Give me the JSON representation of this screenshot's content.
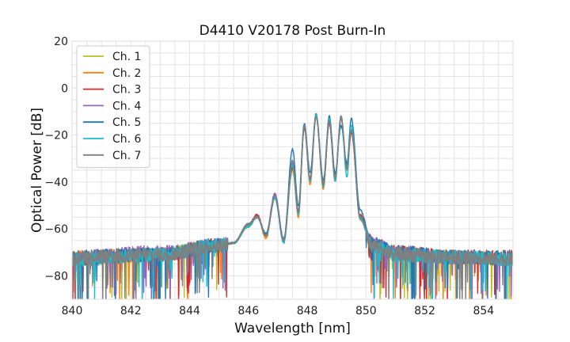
{
  "chart_data": {
    "type": "line",
    "title": "D4410 V20178 Post Burn-In",
    "xlabel": "Wavelength [nm]",
    "ylabel": "Optical Power [dB]",
    "xlim": [
      840,
      855
    ],
    "ylim": [
      -90,
      20
    ],
    "xticks": [
      840,
      842,
      844,
      846,
      848,
      850,
      852,
      854
    ],
    "yticks": [
      -80,
      -60,
      -40,
      -20,
      0,
      20
    ],
    "grid": true,
    "legend_position": "top-left",
    "series": [
      {
        "name": "Ch. 1",
        "color": "#bcbd22",
        "points": [
          [
            840,
            -73
          ],
          [
            843,
            -71
          ],
          [
            845,
            -67
          ],
          [
            845.5,
            -66
          ],
          [
            846,
            -58
          ],
          [
            846.3,
            -55
          ],
          [
            846.6,
            -63
          ],
          [
            846.9,
            -47
          ],
          [
            847.2,
            -65
          ],
          [
            847.5,
            -35
          ],
          [
            847.7,
            -54
          ],
          [
            847.9,
            -17
          ],
          [
            848.1,
            -40
          ],
          [
            848.3,
            -11
          ],
          [
            848.55,
            -42
          ],
          [
            848.75,
            -14
          ],
          [
            848.95,
            -38
          ],
          [
            849.15,
            -12
          ],
          [
            849.35,
            -33
          ],
          [
            849.5,
            -19
          ],
          [
            849.8,
            -55
          ],
          [
            850.2,
            -67
          ],
          [
            851,
            -70
          ],
          [
            853,
            -72
          ],
          [
            855,
            -73
          ]
        ]
      },
      {
        "name": "Ch. 2",
        "color": "#ff7f0e",
        "points": [
          [
            840,
            -72
          ],
          [
            843,
            -71
          ],
          [
            845,
            -67
          ],
          [
            845.5,
            -66
          ],
          [
            846,
            -59
          ],
          [
            846.3,
            -55
          ],
          [
            846.6,
            -64
          ],
          [
            846.9,
            -46
          ],
          [
            847.2,
            -66
          ],
          [
            847.5,
            -33
          ],
          [
            847.7,
            -55
          ],
          [
            847.9,
            -16
          ],
          [
            848.1,
            -41
          ],
          [
            848.3,
            -12
          ],
          [
            848.55,
            -43
          ],
          [
            848.75,
            -13
          ],
          [
            848.95,
            -37
          ],
          [
            849.15,
            -13
          ],
          [
            849.35,
            -35
          ],
          [
            849.5,
            -18
          ],
          [
            849.8,
            -56
          ],
          [
            850.2,
            -67
          ],
          [
            851,
            -71
          ],
          [
            853,
            -72
          ],
          [
            855,
            -73
          ]
        ]
      },
      {
        "name": "Ch. 3",
        "color": "#d62728",
        "points": [
          [
            840,
            -73
          ],
          [
            843,
            -71
          ],
          [
            845,
            -67
          ],
          [
            845.5,
            -66
          ],
          [
            846,
            -58
          ],
          [
            846.3,
            -54
          ],
          [
            846.6,
            -63
          ],
          [
            846.9,
            -47
          ],
          [
            847.2,
            -65
          ],
          [
            847.5,
            -34
          ],
          [
            847.7,
            -53
          ],
          [
            847.9,
            -17
          ],
          [
            848.1,
            -39
          ],
          [
            848.3,
            -12
          ],
          [
            848.55,
            -41
          ],
          [
            848.75,
            -15
          ],
          [
            848.95,
            -39
          ],
          [
            849.15,
            -12
          ],
          [
            849.35,
            -34
          ],
          [
            849.5,
            -19
          ],
          [
            849.8,
            -54
          ],
          [
            850.2,
            -66
          ],
          [
            851,
            -70
          ],
          [
            853,
            -72
          ],
          [
            855,
            -72
          ]
        ]
      },
      {
        "name": "Ch. 4",
        "color": "#9467bd",
        "points": [
          [
            840,
            -72
          ],
          [
            843,
            -70
          ],
          [
            845,
            -67
          ],
          [
            845.5,
            -66
          ],
          [
            846,
            -58
          ],
          [
            846.3,
            -55
          ],
          [
            846.6,
            -62
          ],
          [
            846.9,
            -45
          ],
          [
            847.2,
            -64
          ],
          [
            847.5,
            -32
          ],
          [
            847.7,
            -52
          ],
          [
            847.9,
            -16
          ],
          [
            848.1,
            -38
          ],
          [
            848.3,
            -12
          ],
          [
            848.55,
            -40
          ],
          [
            848.75,
            -14
          ],
          [
            848.95,
            -38
          ],
          [
            849.15,
            -13
          ],
          [
            849.35,
            -33
          ],
          [
            849.5,
            -18
          ],
          [
            849.8,
            -55
          ],
          [
            850.2,
            -66
          ],
          [
            851,
            -70
          ],
          [
            853,
            -72
          ],
          [
            855,
            -73
          ]
        ]
      },
      {
        "name": "Ch. 5",
        "color": "#1f77b4",
        "points": [
          [
            840,
            -72
          ],
          [
            843,
            -71
          ],
          [
            845,
            -67
          ],
          [
            845.5,
            -66
          ],
          [
            846,
            -58
          ],
          [
            846.3,
            -55
          ],
          [
            846.6,
            -62
          ],
          [
            846.9,
            -46
          ],
          [
            847.2,
            -65
          ],
          [
            847.5,
            -26
          ],
          [
            847.7,
            -50
          ],
          [
            847.9,
            -15
          ],
          [
            848.1,
            -36
          ],
          [
            848.3,
            -11
          ],
          [
            848.55,
            -39
          ],
          [
            848.75,
            -12
          ],
          [
            848.95,
            -36
          ],
          [
            849.15,
            -16
          ],
          [
            849.35,
            -32
          ],
          [
            849.5,
            -13
          ],
          [
            849.8,
            -52
          ],
          [
            850.2,
            -66
          ],
          [
            851,
            -70
          ],
          [
            853,
            -72
          ],
          [
            855,
            -72
          ]
        ]
      },
      {
        "name": "Ch. 6",
        "color": "#17becf",
        "points": [
          [
            840,
            -73
          ],
          [
            843,
            -71
          ],
          [
            845,
            -67
          ],
          [
            845.5,
            -66
          ],
          [
            846,
            -59
          ],
          [
            846.3,
            -55
          ],
          [
            846.6,
            -63
          ],
          [
            846.9,
            -47
          ],
          [
            847.2,
            -66
          ],
          [
            847.5,
            -33
          ],
          [
            847.7,
            -54
          ],
          [
            847.9,
            -16
          ],
          [
            848.1,
            -40
          ],
          [
            848.3,
            -11
          ],
          [
            848.55,
            -42
          ],
          [
            848.75,
            -13
          ],
          [
            848.95,
            -40
          ],
          [
            849.15,
            -12
          ],
          [
            849.35,
            -38
          ],
          [
            849.5,
            -16
          ],
          [
            849.8,
            -56
          ],
          [
            850.2,
            -67
          ],
          [
            851,
            -71
          ],
          [
            853,
            -72
          ],
          [
            855,
            -73
          ]
        ]
      },
      {
        "name": "Ch. 7",
        "color": "#7f7f7f",
        "points": [
          [
            840,
            -72
          ],
          [
            843,
            -71
          ],
          [
            845,
            -67
          ],
          [
            845.5,
            -66
          ],
          [
            846,
            -58
          ],
          [
            846.3,
            -55
          ],
          [
            846.6,
            -63
          ],
          [
            846.9,
            -46
          ],
          [
            847.2,
            -65
          ],
          [
            847.5,
            -31
          ],
          [
            847.7,
            -53
          ],
          [
            847.9,
            -16
          ],
          [
            848.1,
            -39
          ],
          [
            848.3,
            -12
          ],
          [
            848.55,
            -41
          ],
          [
            848.75,
            -14
          ],
          [
            848.95,
            -38
          ],
          [
            849.15,
            -12
          ],
          [
            849.35,
            -34
          ],
          [
            849.5,
            -18
          ],
          [
            849.8,
            -55
          ],
          [
            850.2,
            -67
          ],
          [
            851,
            -71
          ],
          [
            853,
            -72
          ],
          [
            855,
            -73
          ]
        ]
      }
    ]
  }
}
